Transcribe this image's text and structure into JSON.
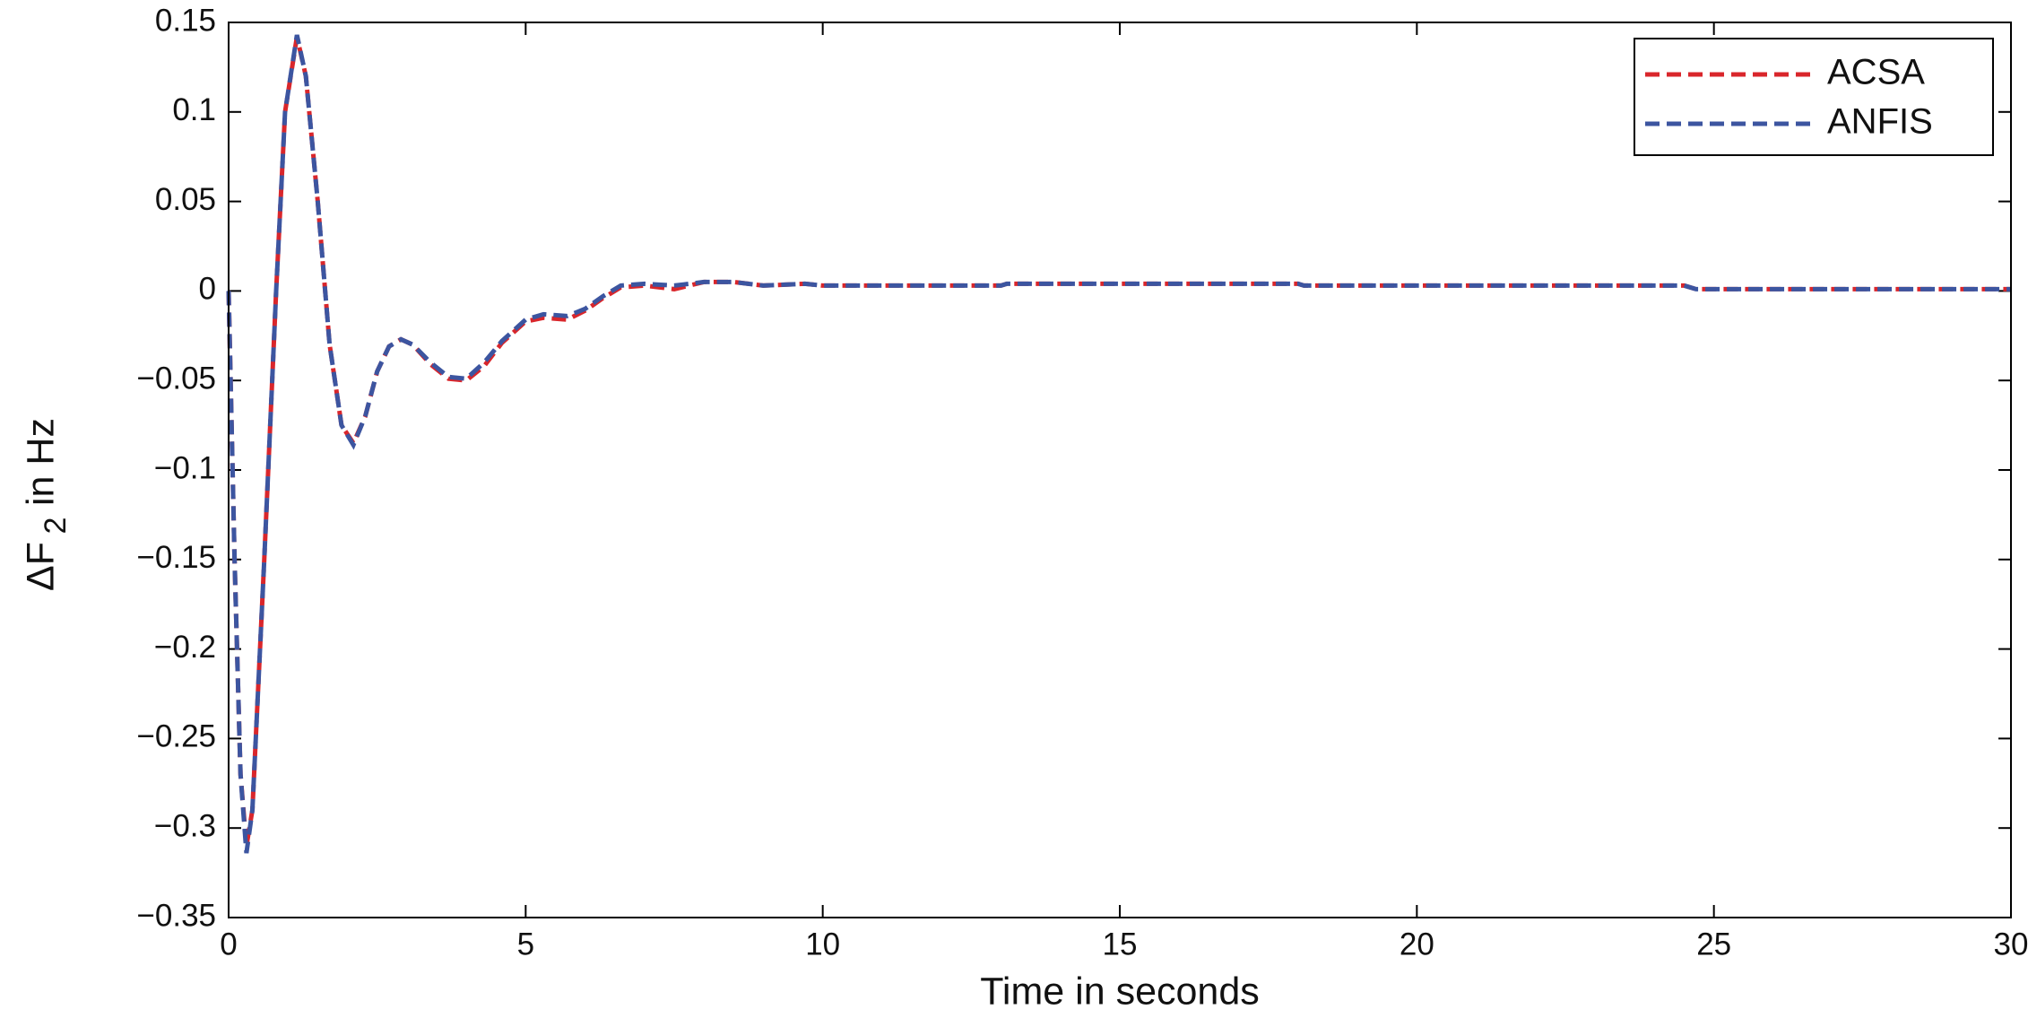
{
  "chart_data": {
    "type": "line",
    "xlabel": "Time in seconds",
    "ylabel": "ΔF",
    "ylabel_sub": "2",
    "ylabel_rest": "in Hz",
    "x": [
      0,
      0.1,
      0.2,
      0.3,
      0.4,
      0.6,
      0.8,
      0.95,
      1.15,
      1.3,
      1.5,
      1.7,
      1.9,
      2.1,
      2.3,
      2.5,
      2.7,
      2.9,
      3.1,
      3.4,
      3.7,
      4.0,
      4.3,
      4.6,
      5.0,
      5.3,
      5.7,
      6.0,
      6.3,
      6.6,
      7.0,
      7.5,
      8.0,
      8.5,
      9.0,
      9.7,
      10,
      13,
      13.1,
      18,
      18.1,
      24.5,
      24.7,
      30
    ],
    "series": [
      {
        "name": "ACSA",
        "color": "#d9262b",
        "values": [
          0,
          -0.15,
          -0.27,
          -0.31,
          -0.29,
          -0.15,
          0.0,
          0.1,
          0.142,
          0.12,
          0.05,
          -0.03,
          -0.075,
          -0.085,
          -0.07,
          -0.045,
          -0.031,
          -0.027,
          -0.03,
          -0.041,
          -0.049,
          -0.05,
          -0.042,
          -0.029,
          -0.017,
          -0.015,
          -0.016,
          -0.011,
          -0.004,
          0.002,
          0.003,
          0.001,
          0.005,
          0.005,
          0.003,
          0.004,
          0.003,
          0.003,
          0.004,
          0.004,
          0.003,
          0.003,
          0.001,
          0.001
        ]
      },
      {
        "name": "ANFIS",
        "color": "#3c55a0",
        "values": [
          0,
          -0.15,
          -0.27,
          -0.314,
          -0.29,
          -0.15,
          0.0,
          0.1,
          0.143,
          0.12,
          0.05,
          -0.03,
          -0.075,
          -0.086,
          -0.07,
          -0.045,
          -0.031,
          -0.027,
          -0.03,
          -0.04,
          -0.048,
          -0.049,
          -0.04,
          -0.028,
          -0.016,
          -0.013,
          -0.014,
          -0.01,
          -0.003,
          0.003,
          0.004,
          0.003,
          0.005,
          0.005,
          0.003,
          0.004,
          0.003,
          0.003,
          0.004,
          0.004,
          0.003,
          0.003,
          0.001,
          0.001
        ]
      }
    ],
    "xlim": [
      0,
      30
    ],
    "xticks": [
      0,
      5,
      10,
      15,
      20,
      25,
      30
    ],
    "ylim": [
      -0.35,
      0.15
    ],
    "yticks": [
      {
        "value": -0.35,
        "label": "−0.35"
      },
      {
        "value": -0.3,
        "label": "−0.3"
      },
      {
        "value": -0.25,
        "label": "−0.25"
      },
      {
        "value": -0.2,
        "label": "−0.2"
      },
      {
        "value": -0.15,
        "label": "−0.15"
      },
      {
        "value": -0.1,
        "label": "−0.1"
      },
      {
        "value": -0.05,
        "label": "−0.05"
      },
      0,
      0.05,
      0.1,
      0.15
    ],
    "grid": false,
    "legend": "top-right"
  }
}
